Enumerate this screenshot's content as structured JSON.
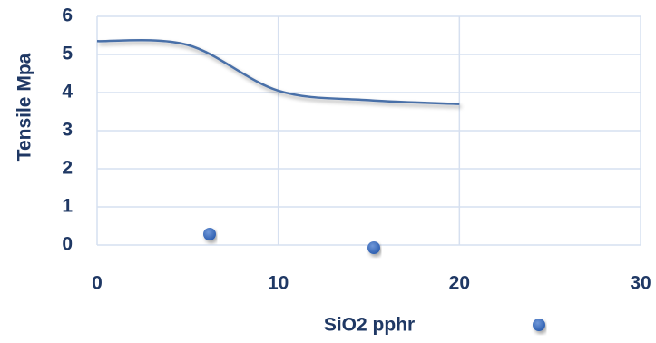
{
  "chart_data": {
    "type": "line",
    "xlabel": "SiO2 pphr",
    "ylabel": "Tensile Mpa",
    "x": [
      0,
      5,
      10,
      15,
      20
    ],
    "values": [
      5.35,
      5.25,
      4.05,
      3.8,
      3.7
    ],
    "color": "#4a6fa8",
    "smooth": true,
    "grid": true,
    "xlim": [
      0,
      30
    ],
    "xticks": [
      0,
      10,
      20,
      30
    ],
    "ylim": [
      0,
      6
    ],
    "yticks": [
      0,
      1,
      2,
      3,
      4,
      5,
      6
    ]
  }
}
